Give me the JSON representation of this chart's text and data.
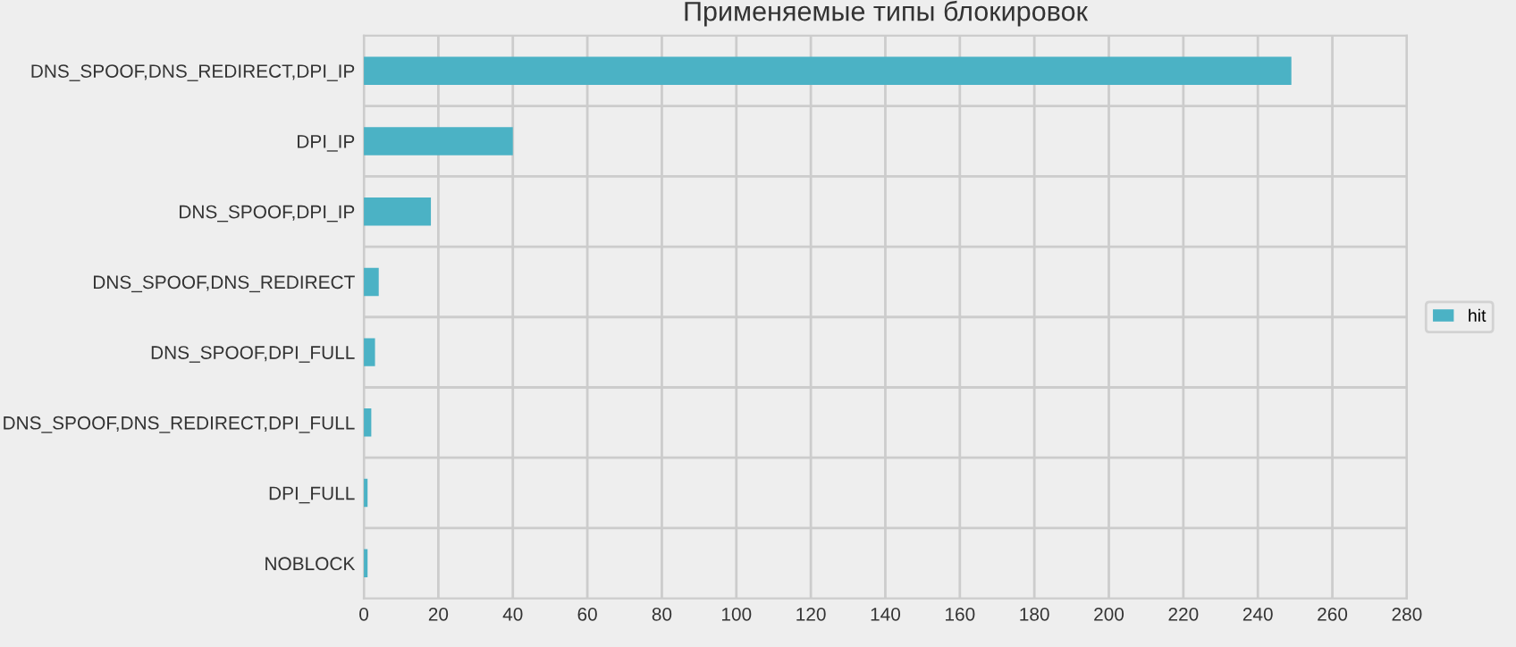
{
  "chart_data": {
    "type": "bar",
    "orientation": "horizontal",
    "title": "Применяемые типы блокировок",
    "categories": [
      "DNS_SPOOF,DNS_REDIRECT,DPI_IP",
      "DPI_IP",
      "DNS_SPOOF,DPI_IP",
      "DNS_SPOOF,DNS_REDIRECT",
      "DNS_SPOOF,DPI_FULL",
      "DNS_SPOOF,DNS_REDIRECT,DPI_FULL",
      "DPI_FULL",
      "NOBLOCK"
    ],
    "series": [
      {
        "name": "hit",
        "color": "#4bb2c5",
        "values": [
          249,
          40,
          18,
          4,
          3,
          2,
          1,
          1
        ]
      }
    ],
    "xlim": [
      0,
      280
    ],
    "xticks": [
      0,
      20,
      40,
      60,
      80,
      100,
      120,
      140,
      160,
      180,
      200,
      220,
      240,
      260,
      280
    ],
    "grid": true,
    "legend": "right"
  }
}
